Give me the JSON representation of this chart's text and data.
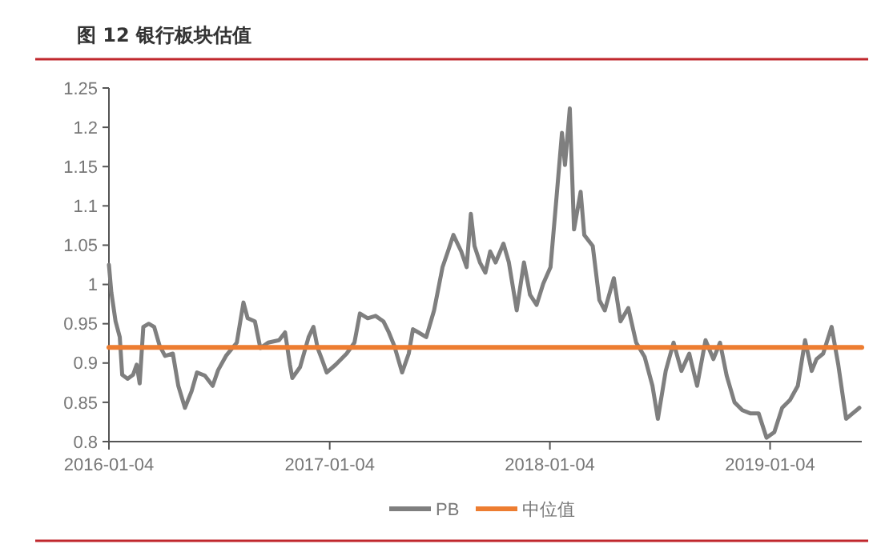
{
  "chart_data": {
    "type": "line",
    "title": "图 12  银行板块估值",
    "xlim": [
      "2016-01-04",
      "2019-06-05"
    ],
    "xticks": [
      "2016-01-04",
      "2017-01-04",
      "2018-01-04",
      "2019-01-04"
    ],
    "ylim": [
      0.8,
      1.25
    ],
    "yticks": [
      0.8,
      0.85,
      0.9,
      0.95,
      1,
      1.05,
      1.1,
      1.15,
      1.2,
      1.25
    ],
    "grid": false,
    "legend": "bottom",
    "marker": "none",
    "line_style": "solid",
    "series": [
      {
        "name": "PB",
        "color": "#7f7f7f",
        "x": [
          "2016-01-04",
          "2016-01-08",
          "2016-01-15",
          "2016-01-22",
          "2016-01-26",
          "2016-02-04",
          "2016-02-13",
          "2016-02-19",
          "2016-02-24",
          "2016-03-01",
          "2016-03-10",
          "2016-03-19",
          "2016-03-28",
          "2016-04-06",
          "2016-04-19",
          "2016-04-28",
          "2016-05-09",
          "2016-05-20",
          "2016-05-29",
          "2016-06-11",
          "2016-06-24",
          "2016-07-03",
          "2016-07-16",
          "2016-08-03",
          "2016-08-14",
          "2016-08-21",
          "2016-09-02",
          "2016-09-11",
          "2016-09-24",
          "2016-10-12",
          "2016-10-22",
          "2016-10-30",
          "2016-11-03",
          "2016-11-16",
          "2016-11-30",
          "2016-12-08",
          "2016-12-15",
          "2016-12-22",
          "2016-12-30",
          "2017-01-14",
          "2017-02-01",
          "2017-02-14",
          "2017-02-23",
          "2017-03-08",
          "2017-03-21",
          "2017-04-03",
          "2017-04-12",
          "2017-04-21",
          "2017-05-04",
          "2017-05-15",
          "2017-05-22",
          "2017-05-31",
          "2017-06-13",
          "2017-06-26",
          "2017-07-10",
          "2017-07-19",
          "2017-07-28",
          "2017-08-10",
          "2017-08-19",
          "2017-08-26",
          "2017-09-01",
          "2017-09-10",
          "2017-09-19",
          "2017-09-27",
          "2017-10-06",
          "2017-10-19",
          "2017-10-28",
          "2017-11-10",
          "2017-11-22",
          "2017-12-02",
          "2017-12-13",
          "2017-12-24",
          "2018-01-05",
          "2018-01-15",
          "2018-01-24",
          "2018-01-29",
          "2018-02-06",
          "2018-02-13",
          "2018-02-24",
          "2018-03-02",
          "2018-03-16",
          "2018-03-27",
          "2018-04-05",
          "2018-04-20",
          "2018-05-01",
          "2018-05-14",
          "2018-05-27",
          "2018-06-10",
          "2018-06-23",
          "2018-07-02",
          "2018-07-15",
          "2018-07-28",
          "2018-08-10",
          "2018-08-23",
          "2018-09-05",
          "2018-09-19",
          "2018-10-02",
          "2018-10-13",
          "2018-10-24",
          "2018-11-06",
          "2018-11-19",
          "2018-12-02",
          "2018-12-16",
          "2018-12-29",
          "2019-01-11",
          "2019-01-24",
          "2019-02-06",
          "2019-02-19",
          "2019-03-03",
          "2019-03-14",
          "2019-03-22",
          "2019-04-02",
          "2019-04-16",
          "2019-04-27",
          "2019-05-10",
          "2019-05-21",
          "2019-06-01"
        ],
        "values": [
          1.025,
          0.99,
          0.953,
          0.933,
          0.885,
          0.88,
          0.885,
          0.898,
          0.874,
          0.946,
          0.95,
          0.946,
          0.922,
          0.909,
          0.912,
          0.871,
          0.843,
          0.864,
          0.888,
          0.884,
          0.871,
          0.891,
          0.909,
          0.926,
          0.977,
          0.957,
          0.953,
          0.919,
          0.926,
          0.929,
          0.939,
          0.898,
          0.881,
          0.895,
          0.933,
          0.946,
          0.919,
          0.905,
          0.888,
          0.898,
          0.912,
          0.926,
          0.963,
          0.957,
          0.96,
          0.953,
          0.939,
          0.922,
          0.888,
          0.912,
          0.943,
          0.939,
          0.933,
          0.967,
          1.022,
          1.042,
          1.063,
          1.042,
          1.022,
          1.09,
          1.049,
          1.028,
          1.015,
          1.042,
          1.028,
          1.052,
          1.028,
          0.967,
          1.028,
          0.987,
          0.974,
          1.001,
          1.022,
          1.111,
          1.193,
          1.152,
          1.224,
          1.07,
          1.118,
          1.063,
          1.049,
          0.98,
          0.967,
          1.008,
          0.953,
          0.97,
          0.926,
          0.908,
          0.871,
          0.829,
          0.89,
          0.926,
          0.89,
          0.912,
          0.871,
          0.929,
          0.905,
          0.926,
          0.884,
          0.85,
          0.84,
          0.836,
          0.836,
          0.805,
          0.812,
          0.843,
          0.853,
          0.871,
          0.929,
          0.89,
          0.905,
          0.912,
          0.946,
          0.898,
          0.829,
          0.836,
          0.843
        ]
      },
      {
        "name": "中位值",
        "color": "#ed7d31",
        "x": [
          "2016-01-04",
          "2019-06-05"
        ],
        "values": [
          0.92,
          0.92
        ]
      }
    ]
  }
}
